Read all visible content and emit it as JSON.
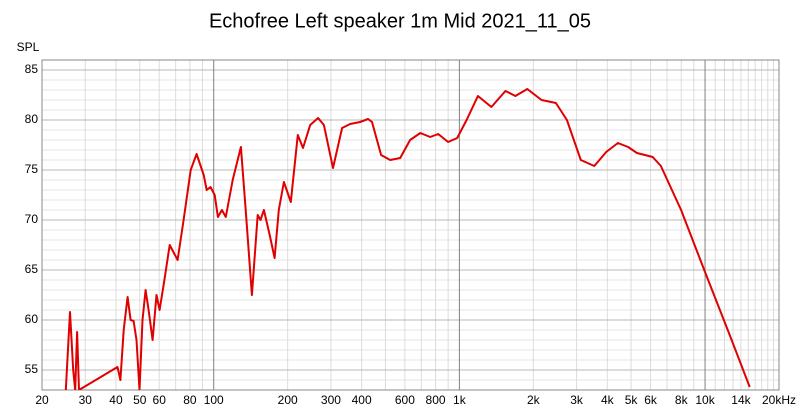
{
  "chart_data": {
    "type": "line",
    "title": "Echofree Left speaker 1m Mid 2021_11_05",
    "y_label": "SPL",
    "xscale": "log",
    "grid": true,
    "xlim": [
      20,
      20000
    ],
    "ylim": [
      53,
      86
    ],
    "xticks": [
      20,
      30,
      40,
      50,
      60,
      80,
      100,
      200,
      300,
      400,
      600,
      800,
      {
        "value": 1000,
        "label": "1k"
      },
      {
        "value": 2000,
        "label": "2k"
      },
      {
        "value": 3000,
        "label": "3k"
      },
      {
        "value": 4000,
        "label": "4k"
      },
      {
        "value": 5000,
        "label": "5k"
      },
      {
        "value": 6000,
        "label": "6k"
      },
      {
        "value": 8000,
        "label": "8k"
      },
      {
        "value": 10000,
        "label": "10k"
      },
      {
        "value": 14000,
        "label": "14k",
        "color": "#999999"
      },
      {
        "value": 20000,
        "label": "20kHz"
      }
    ],
    "yticks": [
      55,
      60,
      65,
      70,
      75,
      80,
      85
    ],
    "xgrid": [
      30,
      40,
      50,
      60,
      70,
      80,
      90,
      200,
      300,
      400,
      500,
      600,
      700,
      800,
      900,
      2000,
      3000,
      4000,
      5000,
      6000,
      7000,
      8000,
      9000,
      11000,
      12000,
      13000,
      14000,
      15000,
      16000,
      17000,
      18000,
      19000
    ],
    "xgrid_major": [
      100,
      1000,
      10000
    ],
    "ygrid": [
      54,
      55,
      56,
      57,
      58,
      59,
      60,
      61,
      62,
      63,
      64,
      65,
      66,
      67,
      68,
      69,
      70,
      71,
      72,
      73,
      74,
      75,
      76,
      77,
      78,
      79,
      80,
      81,
      82,
      83,
      84,
      85
    ],
    "series": [
      {
        "color": "#e00000",
        "x": [
          25,
          26,
          26.8,
          27.3,
          27.8,
          28.3,
          40.6,
          41.7,
          43,
          44.6,
          45.9,
          47.2,
          48.5,
          49.9,
          51.3,
          52.8,
          54.3,
          56.4,
          58.5,
          60.2,
          63,
          66.2,
          71.3,
          75.4,
          80.6,
          85.2,
          91,
          93.6,
          97,
          100.9,
          104,
          108,
          112,
          119.5,
          129,
          135,
          143,
          151,
          155,
          160,
          169,
          177,
          184,
          193,
          206,
          220,
          231,
          247,
          266,
          281,
          306,
          333,
          359,
          394,
          425,
          441,
          480,
          523,
          574,
          630,
          693,
          761,
          820,
          900,
          980,
          1070,
          1190,
          1350,
          1540,
          1690,
          1890,
          2160,
          2470,
          2740,
          3120,
          3540,
          3960,
          4420,
          4860,
          5280,
          6120,
          6610,
          7990,
          10000,
          12600,
          15200
        ],
        "values": [
          53,
          60.8,
          55,
          53,
          58.8,
          53,
          55.3,
          54,
          59,
          62.3,
          60,
          59.9,
          58,
          53,
          60,
          63,
          61,
          58,
          62.5,
          61,
          64,
          67.5,
          66,
          70,
          75,
          76.6,
          74.5,
          73,
          73.3,
          72.5,
          70.3,
          71,
          70.3,
          74,
          77.3,
          71,
          62.5,
          70.5,
          70,
          71,
          68.5,
          66.2,
          71,
          73.8,
          71.8,
          78.5,
          77.2,
          79.5,
          80.2,
          79.5,
          75.2,
          79.2,
          79.6,
          79.8,
          80.1,
          79.8,
          76.5,
          76,
          76.2,
          78,
          78.7,
          78.3,
          78.6,
          77.8,
          78.2,
          80,
          82.4,
          81.3,
          82.9,
          82.4,
          83.1,
          82,
          81.7,
          80,
          76,
          75.4,
          76.8,
          77.7,
          77.3,
          76.7,
          76.3,
          75.4,
          71,
          64.8,
          58.5,
          53.3
        ]
      }
    ]
  }
}
